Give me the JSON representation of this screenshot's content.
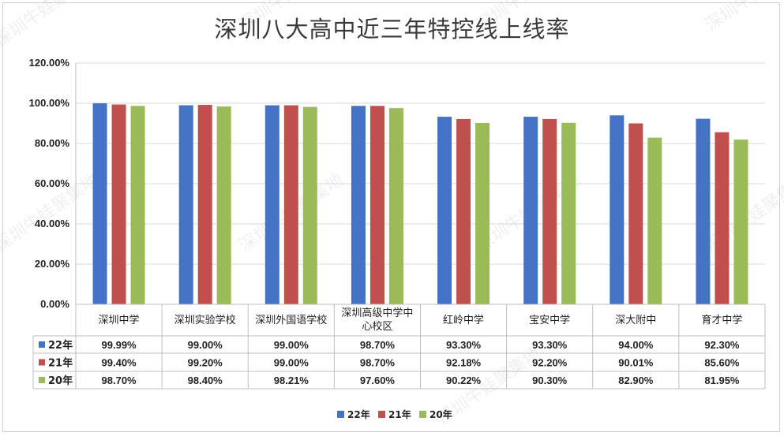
{
  "chart_data": {
    "type": "bar",
    "title": "深圳八大高中近三年特控线上线率",
    "categories": [
      "深圳中学",
      "深圳实验学校",
      "深圳外国语学校",
      "深圳高级中学中心校区",
      "红岭中学",
      "宝安中学",
      "深大附中",
      "育才中学"
    ],
    "series": [
      {
        "name": "22年",
        "color": "#4472c4",
        "values": [
          99.99,
          99.0,
          99.0,
          98.7,
          93.3,
          93.3,
          94.0,
          92.3
        ],
        "labels": [
          "99.99%",
          "99.00%",
          "99.00%",
          "98.70%",
          "93.30%",
          "93.30%",
          "94.00%",
          "92.30%"
        ]
      },
      {
        "name": "21年",
        "color": "#c0504d",
        "values": [
          99.4,
          99.2,
          99.0,
          98.7,
          92.18,
          92.2,
          90.01,
          85.6
        ],
        "labels": [
          "99.40%",
          "99.20%",
          "99.00%",
          "98.70%",
          "92.18%",
          "92.20%",
          "90.01%",
          "85.60%"
        ]
      },
      {
        "name": "20年",
        "color": "#9bbb59",
        "values": [
          98.7,
          98.4,
          98.21,
          97.6,
          90.22,
          90.3,
          82.9,
          81.95
        ],
        "labels": [
          "98.70%",
          "98.40%",
          "98.21%",
          "97.60%",
          "90.22%",
          "90.30%",
          "82.90%",
          "81.95%"
        ]
      }
    ],
    "ylim": [
      0,
      120
    ],
    "yticks": [
      0,
      20,
      40,
      60,
      80,
      100,
      120
    ],
    "ytick_labels": [
      "0.00%",
      "20.00%",
      "40.00%",
      "60.00%",
      "80.00%",
      "100.00%",
      "120.00%"
    ],
    "grid": true,
    "legend": "bottom-center",
    "data_table": true
  },
  "watermark": "深圳牛娃聚集地"
}
